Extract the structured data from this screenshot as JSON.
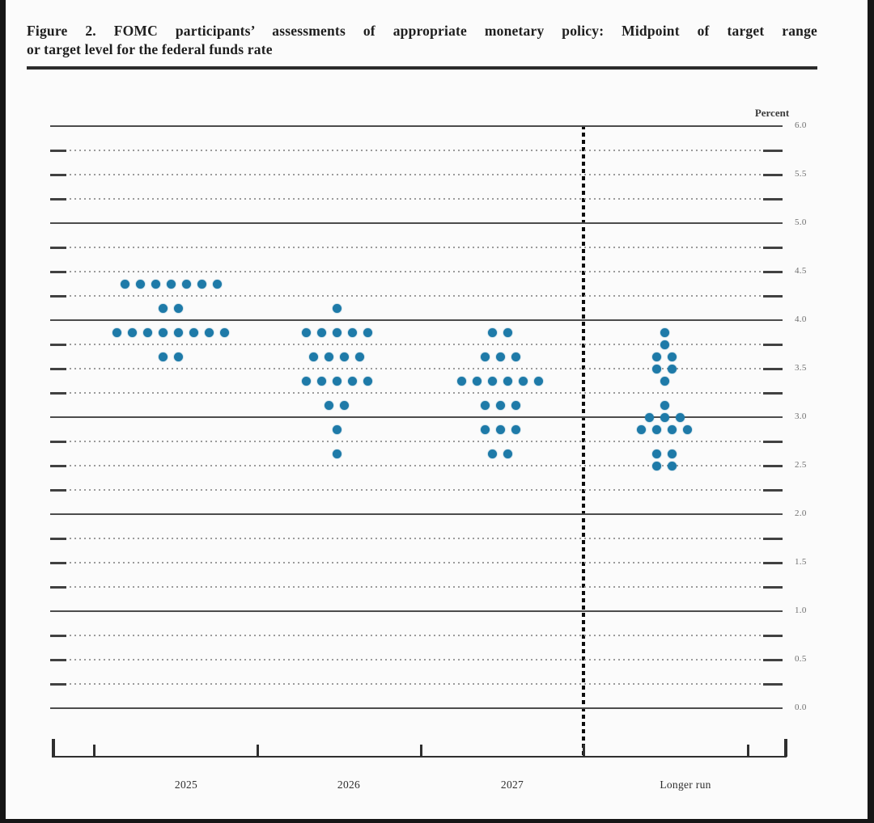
{
  "title": {
    "line1": "Figure 2.  FOMC participants’ assessments of appropriate monetary policy:  Midpoint of target range",
    "line2": "or target level for the federal funds rate"
  },
  "chart_data": {
    "type": "scatter",
    "subtype": "fomc-dot-plot",
    "title": "Figure 2. FOMC participants’ assessments of appropriate monetary policy: Midpoint of target range or target level for the federal funds rate",
    "unit_label": "Percent",
    "categories": [
      "2025",
      "2026",
      "2027",
      "Longer run"
    ],
    "ylim": [
      0.0,
      6.0
    ],
    "gridline_step": 0.25,
    "solid_gridline_step": 1.0,
    "y_tick_labels": [
      "6.0",
      "5.5",
      "5.0",
      "4.5",
      "4.0",
      "3.5",
      "3.0",
      "2.5",
      "2.0",
      "1.5",
      "1.0",
      "0.5",
      "0.0"
    ],
    "legend_position": "none",
    "grid": "on",
    "dot_color": "#1e7aa8",
    "separator_after_category": "2027",
    "series": [
      {
        "category": "2025",
        "dots": [
          {
            "value": 4.375,
            "count": 7
          },
          {
            "value": 4.125,
            "count": 2
          },
          {
            "value": 3.875,
            "count": 8
          },
          {
            "value": 3.625,
            "count": 2
          }
        ]
      },
      {
        "category": "2026",
        "dots": [
          {
            "value": 4.125,
            "count": 1
          },
          {
            "value": 3.875,
            "count": 5
          },
          {
            "value": 3.625,
            "count": 4
          },
          {
            "value": 3.375,
            "count": 5
          },
          {
            "value": 3.125,
            "count": 2
          },
          {
            "value": 2.875,
            "count": 1
          },
          {
            "value": 2.625,
            "count": 1
          }
        ]
      },
      {
        "category": "2027",
        "dots": [
          {
            "value": 3.875,
            "count": 2
          },
          {
            "value": 3.625,
            "count": 3
          },
          {
            "value": 3.375,
            "count": 6
          },
          {
            "value": 3.125,
            "count": 3
          },
          {
            "value": 2.875,
            "count": 3
          },
          {
            "value": 2.625,
            "count": 2
          }
        ]
      },
      {
        "category": "Longer run",
        "dots": [
          {
            "value": 3.875,
            "count": 1
          },
          {
            "value": 3.75,
            "count": 1
          },
          {
            "value": 3.625,
            "count": 2
          },
          {
            "value": 3.5,
            "count": 2
          },
          {
            "value": 3.375,
            "count": 1
          },
          {
            "value": 3.125,
            "count": 1
          },
          {
            "value": 3.0,
            "count": 3
          },
          {
            "value": 2.875,
            "count": 4
          },
          {
            "value": 2.625,
            "count": 2
          },
          {
            "value": 2.5,
            "count": 2
          }
        ]
      }
    ]
  }
}
